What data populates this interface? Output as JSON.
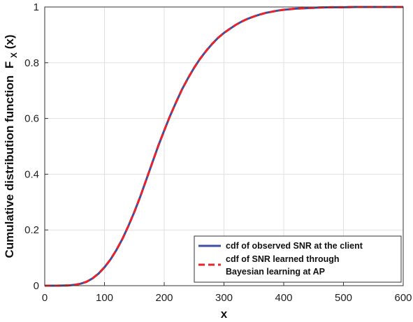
{
  "chart_data": {
    "type": "line",
    "xlabel": "x",
    "ylabel": "Cumulative distribution function",
    "ylabel_math": {
      "base": "F",
      "subscript": "X",
      "suffix": "(x)"
    },
    "xlim": [
      0,
      600
    ],
    "ylim": [
      0,
      1
    ],
    "xticks": [
      0,
      100,
      200,
      300,
      400,
      500,
      600
    ],
    "yticks": [
      0,
      0.2,
      0.4,
      0.6,
      0.8,
      1
    ],
    "grid": true,
    "legend_position": "bottom-right",
    "legend": [
      {
        "lines": [
          "cdf of observed SNR at the client"
        ]
      },
      {
        "lines": [
          "cdf of SNR learned through",
          "Bayesian learning at AP"
        ]
      }
    ],
    "series": [
      {
        "name": "cdf of observed SNR at the client",
        "color": "#3d4fa0",
        "style": "solid",
        "x": [
          0,
          20,
          40,
          50,
          60,
          70,
          80,
          90,
          100,
          110,
          120,
          130,
          140,
          150,
          160,
          170,
          180,
          190,
          200,
          210,
          220,
          230,
          240,
          250,
          260,
          270,
          280,
          290,
          300,
          310,
          320,
          330,
          340,
          350,
          360,
          370,
          380,
          390,
          400,
          420,
          440,
          460,
          480,
          500,
          520,
          550,
          580,
          600
        ],
        "y": [
          0,
          0,
          0.001,
          0.003,
          0.007,
          0.014,
          0.026,
          0.043,
          0.066,
          0.094,
          0.128,
          0.168,
          0.214,
          0.265,
          0.32,
          0.38,
          0.441,
          0.501,
          0.557,
          0.61,
          0.659,
          0.705,
          0.745,
          0.782,
          0.814,
          0.842,
          0.867,
          0.889,
          0.907,
          0.922,
          0.936,
          0.948,
          0.958,
          0.966,
          0.973,
          0.979,
          0.983,
          0.987,
          0.99,
          0.994,
          0.996,
          0.998,
          0.999,
          0.999,
          1,
          1,
          1,
          1
        ]
      },
      {
        "name": "cdf of SNR learned through Bayesian learning at AP",
        "color": "#e8232a",
        "style": "dashed",
        "x": [
          0,
          20,
          40,
          50,
          60,
          70,
          80,
          90,
          100,
          110,
          120,
          130,
          140,
          150,
          160,
          170,
          180,
          190,
          200,
          210,
          220,
          230,
          240,
          250,
          260,
          270,
          280,
          290,
          300,
          310,
          320,
          330,
          340,
          350,
          360,
          370,
          380,
          390,
          400,
          420,
          440,
          460,
          480,
          500,
          520,
          550,
          580,
          600
        ],
        "y": [
          0,
          0,
          0.001,
          0.003,
          0.007,
          0.014,
          0.026,
          0.043,
          0.066,
          0.094,
          0.128,
          0.168,
          0.214,
          0.265,
          0.32,
          0.38,
          0.441,
          0.501,
          0.557,
          0.61,
          0.659,
          0.705,
          0.745,
          0.782,
          0.814,
          0.842,
          0.867,
          0.889,
          0.907,
          0.922,
          0.936,
          0.948,
          0.958,
          0.966,
          0.973,
          0.979,
          0.983,
          0.987,
          0.99,
          0.994,
          0.996,
          0.998,
          0.999,
          0.999,
          1,
          1,
          1,
          1
        ]
      }
    ]
  }
}
